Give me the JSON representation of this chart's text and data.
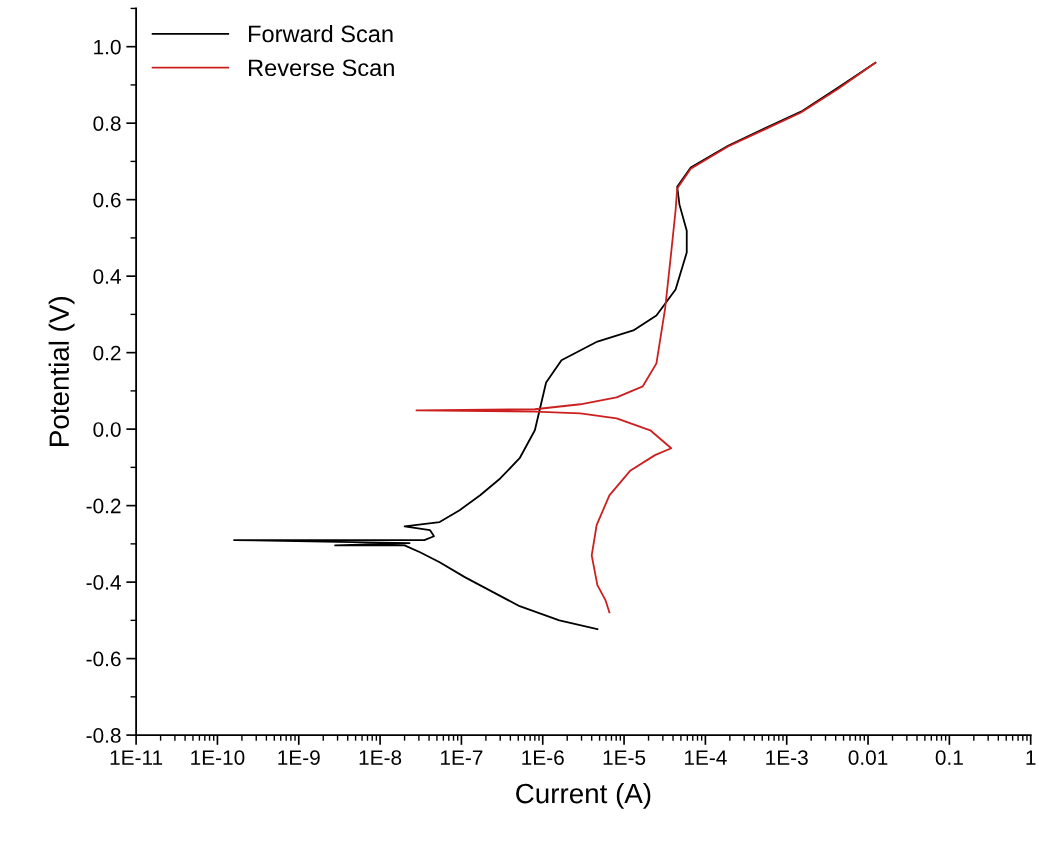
{
  "chart_data": {
    "type": "line",
    "xlabel": "Current (A)",
    "ylabel": "Potential (V)",
    "log": "x",
    "xlim": [
      1e-11,
      1
    ],
    "ylim": [
      -0.8,
      1.1
    ],
    "xticks": [
      {
        "value": 1e-11,
        "label": "1E-11"
      },
      {
        "value": 1e-10,
        "label": "1E-10"
      },
      {
        "value": 1e-09,
        "label": "1E-9"
      },
      {
        "value": 1e-08,
        "label": "1E-8"
      },
      {
        "value": 1e-07,
        "label": "1E-7"
      },
      {
        "value": 1e-06,
        "label": "1E-6"
      },
      {
        "value": 1e-05,
        "label": "1E-5"
      },
      {
        "value": 0.0001,
        "label": "1E-4"
      },
      {
        "value": 0.001,
        "label": "1E-3"
      },
      {
        "value": 0.01,
        "label": "0.01"
      },
      {
        "value": 0.1,
        "label": "0.1"
      },
      {
        "value": 1,
        "label": "1"
      }
    ],
    "yticks": [
      -0.8,
      -0.6,
      -0.4,
      -0.2,
      {
        "value": 0,
        "label": "0.0"
      },
      0.2,
      0.4,
      0.6,
      0.8,
      {
        "value": 1,
        "label": "1.0"
      }
    ],
    "grid": false,
    "legend": "top left",
    "marker": "none",
    "line_style": "solid",
    "series": [
      {
        "name": "Forward Scan",
        "color": "#000000",
        "x": [
          4.7e-06,
          1.6e-06,
          5.2e-07,
          2.2e-07,
          1.1e-07,
          5.4e-08,
          3.1e-08,
          2e-08,
          2.8e-09,
          2.3e-08,
          1.6e-10,
          3.5e-08,
          4.6e-08,
          4.1e-08,
          2e-08,
          5.4e-08,
          9.5e-08,
          1.7e-07,
          3e-07,
          5.2e-07,
          8e-07,
          1.1e-06,
          1.7e-06,
          4.7e-06,
          1.3e-05,
          2.5e-05,
          4.3e-05,
          5.9e-05,
          5.9e-05,
          4.8e-05,
          4.5e-05,
          6.6e-05,
          0.00019,
          0.00053,
          0.0015,
          0.0043,
          0.0123
        ],
        "values": [
          -0.523,
          -0.5,
          -0.463,
          -0.421,
          -0.387,
          -0.348,
          -0.322,
          -0.304,
          -0.304,
          -0.298,
          -0.29,
          -0.29,
          -0.28,
          -0.264,
          -0.254,
          -0.243,
          -0.212,
          -0.173,
          -0.129,
          -0.076,
          -0.003,
          0.122,
          0.18,
          0.229,
          0.258,
          0.297,
          0.365,
          0.462,
          0.519,
          0.587,
          0.634,
          0.684,
          0.741,
          0.786,
          0.83,
          0.893,
          0.958
        ]
      },
      {
        "name": "Reverse Scan",
        "color": "#cc2020",
        "x": [
          0.0123,
          0.0043,
          0.0015,
          0.00053,
          0.00019,
          6.6e-05,
          4.5e-05,
          4.3e-05,
          3.8e-05,
          3.2e-05,
          2.5e-05,
          1.7e-05,
          8.1e-06,
          2.9e-06,
          8e-07,
          2.8e-08,
          8e-07,
          2.9e-06,
          8.1e-06,
          2.1e-05,
          3.8e-05,
          2.4e-05,
          1.2e-05,
          6.6e-06,
          4.6e-06,
          4e-06,
          4.7e-06,
          5.9e-06,
          6.6e-06
        ],
        "values": [
          0.958,
          0.89,
          0.828,
          0.783,
          0.739,
          0.681,
          0.629,
          0.572,
          0.462,
          0.316,
          0.172,
          0.112,
          0.083,
          0.065,
          0.052,
          0.049,
          0.046,
          0.041,
          0.028,
          -0.003,
          -0.05,
          -0.068,
          -0.108,
          -0.173,
          -0.251,
          -0.33,
          -0.408,
          -0.447,
          -0.479
        ]
      }
    ]
  }
}
